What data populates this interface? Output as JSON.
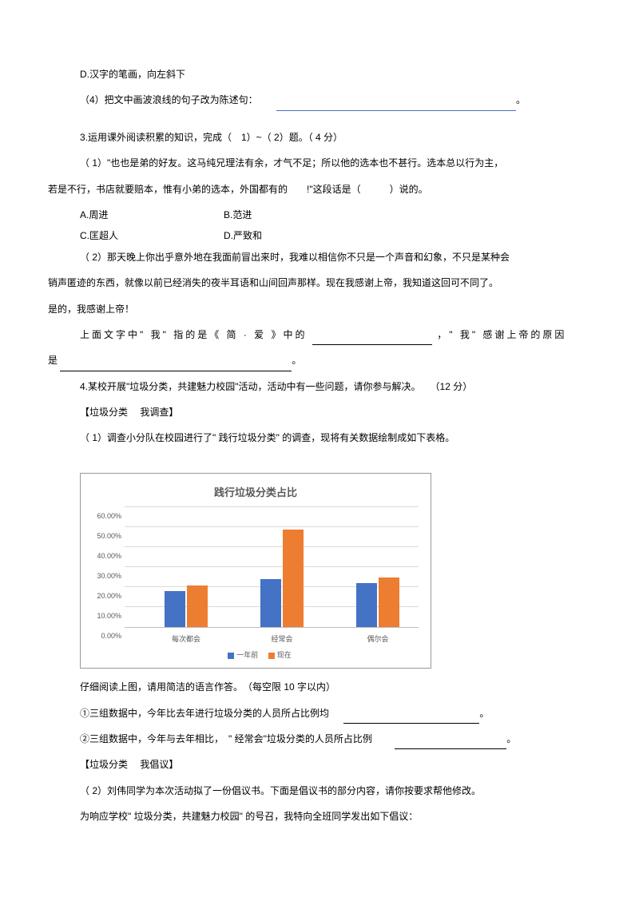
{
  "line_d": "D.汉字的笔画，向左斜下",
  "line_q4": "（4）把文中画波浪线的句子改为陈述句：",
  "line_q3": "3.运用课外阅读积累的知识，完成（　1）~（ 2）题。（ 4 分）",
  "line_q3_1a": "（ 1）\"也也是弟的好友。这马纯兄理法有余，才气不足；所以他的选本也不甚行。选本总以行为主，",
  "line_q3_1b": "若是不行，书店就要赔本，惟有小弟的选本，外国都有的　　!\"这段话是（　　　）说的。",
  "opt_a": "A.周进",
  "opt_b": "B.范进",
  "opt_c": "C.匡超人",
  "opt_d": "D.严致和",
  "line_q3_2a": "（ 2）那天晚上你出乎意外地在我面前冒出来时，我难以相信你不只是一个声音和幻象，不只是某种会",
  "line_q3_2b": "销声匿迹的东西，就像以前已经消失的夜半耳语和山间回声那样。现在我感谢上帝，我知道这回可不同了。",
  "line_q3_2c": "是的，我感谢上帝！",
  "line_q3_2d_pre": "上面文字中\" 我\" 指的是《 简 · 爱 》中的",
  "line_q3_2d_post": "，\" 我\" 感谢上帝的原因",
  "line_q3_2e_pre": "是",
  "line_q4_main": "4.某校开展\"垃圾分类，共建魅力校园\"活动，活动中有一些问题，请你参与解决。　　（12 分）",
  "line_survey_title": "【垃圾分类　 我调查】",
  "line_survey_q": "（ 1）调查小分队在校园进行了\" 践行垃圾分类\" 的调查，现将有关数据绘制成如下表格。",
  "chart": {
    "title": "践行垃圾分类占比",
    "y_ticks": [
      "0.00%",
      "10.00%",
      "20.00%",
      "30.00%",
      "40.00%",
      "50.00%",
      "60.00%"
    ],
    "y_max": 60,
    "categories": [
      "每次都会",
      "经常会",
      "偶尔会"
    ],
    "series": [
      {
        "name": "一年前",
        "color": "#4472c4"
      },
      {
        "name": "现在",
        "color": "#ed7d31"
      }
    ],
    "values_prev": [
      18,
      24,
      22
    ],
    "values_now": [
      21,
      49,
      25
    ],
    "grid_color": "#d9d9d9",
    "axis_color": "#bfbfbf",
    "text_color": "#595959"
  },
  "line_read_chart": "仔细阅读上图，请用简洁的语言作答。　（每空限 10 字以内）",
  "line_chart_q1": "①三组数据中，今年比去年进行垃圾分类的人员所占比例均",
  "line_chart_q2_pre": "②三组数据中，今年与去年相比，　\" 经常会\"垃圾分类的人员所占比例",
  "line_advocate_title": "【垃圾分类　 我倡议】",
  "line_advocate_q": "（ 2）刘伟同学为本次活动拟了一份倡议书。下面是倡议书的部分内容，请你按要求帮他修改。",
  "line_advocate_body": "为响应学校\" 垃圾分类，共建魅力校园\" 的号召，我特向全班同学发出如下倡议："
}
